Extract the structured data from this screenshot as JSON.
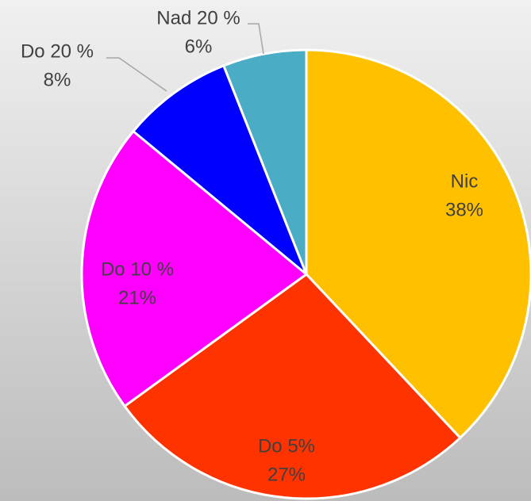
{
  "chart_data": {
    "type": "pie",
    "categories": [
      "Nic",
      "Do 5%",
      "Do 10 %",
      "Do 20 %",
      "Nad 20 %"
    ],
    "values": [
      38,
      27,
      21,
      8,
      6
    ],
    "value_labels": [
      "38%",
      "27%",
      "21%",
      "8%",
      "6%"
    ],
    "colors": [
      "#FFC000",
      "#FF3300",
      "#FF00FF",
      "#0000FF",
      "#4BACC6"
    ]
  }
}
